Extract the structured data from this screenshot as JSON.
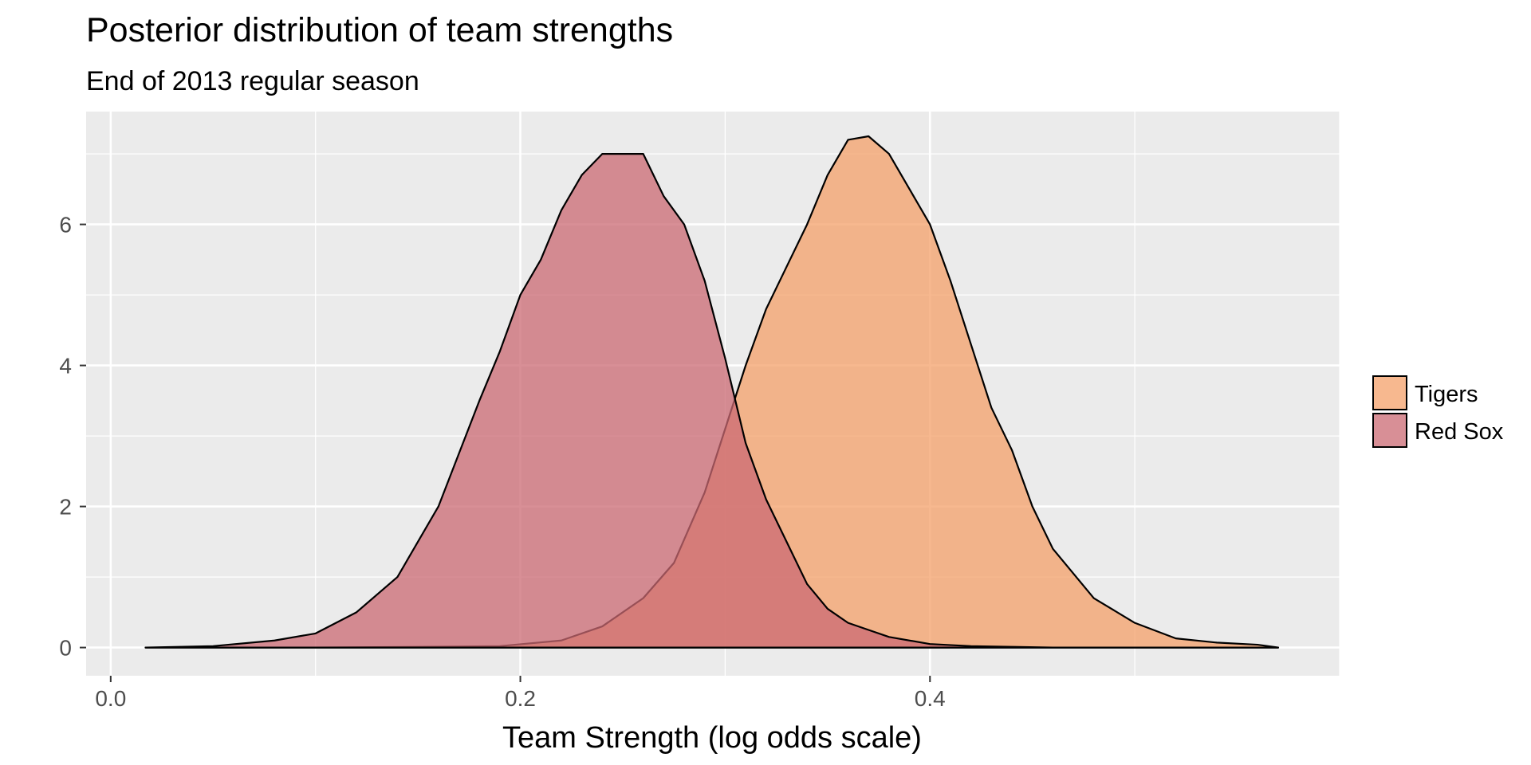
{
  "chart_data": {
    "type": "area",
    "title": "Posterior distribution of team strengths",
    "subtitle": "End of 2013 regular season",
    "xlabel": "Team Strength (log odds scale)",
    "ylabel": "",
    "xlim": [
      -0.012,
      0.6
    ],
    "ylim": [
      -0.4,
      7.6
    ],
    "x_ticks": [
      0.0,
      0.2,
      0.4
    ],
    "x_tick_labels": [
      "0.0",
      "0.2",
      "0.4"
    ],
    "y_ticks": [
      0,
      2,
      4,
      6
    ],
    "y_tick_labels": [
      "0",
      "2",
      "4",
      "6"
    ],
    "grid": true,
    "legend_position": "right",
    "series": [
      {
        "name": "Tigers",
        "color": "#f4a06a",
        "x": [
          0.017,
          0.1,
          0.15,
          0.19,
          0.22,
          0.24,
          0.26,
          0.275,
          0.29,
          0.3,
          0.31,
          0.32,
          0.33,
          0.34,
          0.35,
          0.36,
          0.37,
          0.38,
          0.39,
          0.4,
          0.41,
          0.42,
          0.43,
          0.44,
          0.45,
          0.46,
          0.48,
          0.5,
          0.52,
          0.54,
          0.56,
          0.57
        ],
        "y": [
          0.0,
          0.0,
          0.01,
          0.02,
          0.1,
          0.3,
          0.7,
          1.2,
          2.2,
          3.1,
          4.0,
          4.8,
          5.4,
          6.0,
          6.7,
          7.2,
          7.25,
          7.0,
          6.5,
          6.0,
          5.2,
          4.3,
          3.4,
          2.8,
          2.0,
          1.4,
          0.7,
          0.35,
          0.13,
          0.07,
          0.04,
          0.0
        ]
      },
      {
        "name": "Red Sox",
        "color": "#cb6973",
        "x": [
          0.017,
          0.05,
          0.08,
          0.1,
          0.12,
          0.14,
          0.16,
          0.18,
          0.19,
          0.2,
          0.21,
          0.22,
          0.23,
          0.24,
          0.25,
          0.26,
          0.27,
          0.28,
          0.29,
          0.3,
          0.31,
          0.32,
          0.33,
          0.34,
          0.35,
          0.36,
          0.37,
          0.38,
          0.4,
          0.42,
          0.44,
          0.46,
          0.5,
          0.57
        ],
        "y": [
          0.0,
          0.02,
          0.1,
          0.2,
          0.5,
          1.0,
          2.0,
          3.5,
          4.2,
          5.0,
          5.5,
          6.2,
          6.7,
          7.0,
          7.0,
          7.0,
          6.4,
          6.0,
          5.2,
          4.1,
          2.9,
          2.1,
          1.5,
          0.9,
          0.55,
          0.35,
          0.25,
          0.15,
          0.05,
          0.02,
          0.01,
          0.0,
          0.0,
          0.0
        ]
      }
    ],
    "legend_order": [
      "Tigers",
      "Red Sox"
    ]
  }
}
